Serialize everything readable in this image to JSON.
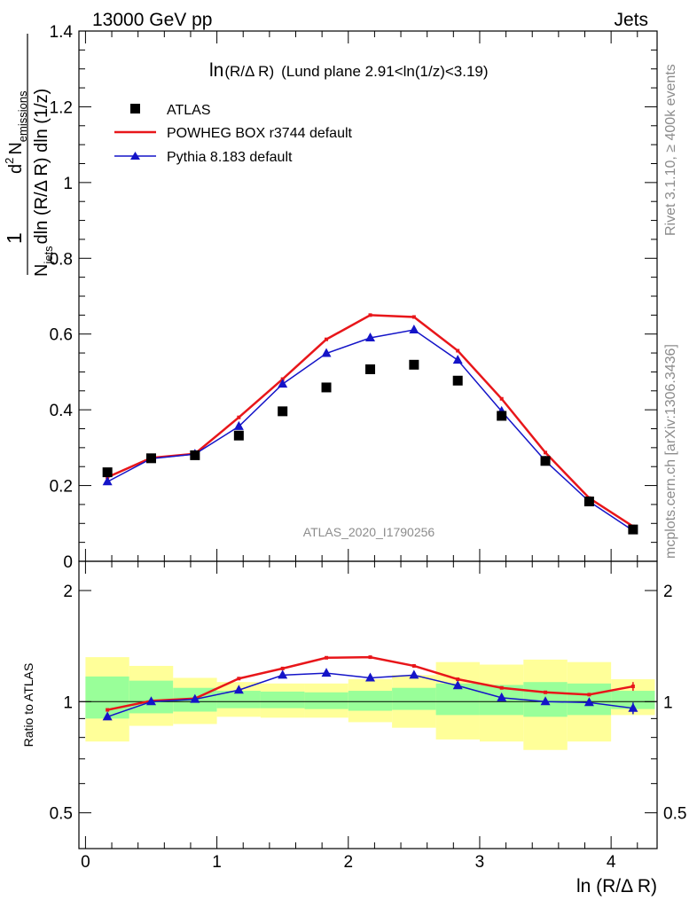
{
  "header": {
    "left": "13000 GeV pp",
    "right": "Jets"
  },
  "side_labels": {
    "rivet": "Rivet 3.1.10, ≥ 400k events",
    "mcplots": "mcplots.cern.ch [arXiv:1306.3436]"
  },
  "watermark": "ATLAS_2020_I1790256",
  "plot_title": {
    "main": "ln",
    "paren": "(R/Δ R)",
    "rest": "(Lund plane 2.91<ln(1/z)<3.19)"
  },
  "y_label_main": {
    "numer_d": "d",
    "numer_sup": "2",
    "numer_n": "N",
    "numer_sub": "emissions",
    "one": "1",
    "den_n": "N",
    "den_sub": "jets",
    "den_rest": "dln (R/Δ R) dln (1/z)"
  },
  "y_label_ratio": "Ratio to ATLAS",
  "x_label": "ln (R/Δ R)",
  "legend": {
    "atlas": "ATLAS",
    "powheg": "POWHEG BOX r3744 default",
    "pythia": "Pythia 8.183 default"
  },
  "colors": {
    "atlas": "#000000",
    "powheg": "#e8161a",
    "pythia": "#1414c8",
    "band_inner": "#99ff99",
    "band_outer": "#ffff99"
  },
  "chart_data": [
    {
      "type": "scatter",
      "panel": "main",
      "x": [
        0.167,
        0.5,
        0.833,
        1.167,
        1.5,
        1.833,
        2.167,
        2.5,
        2.833,
        3.167,
        3.5,
        3.833,
        4.167
      ],
      "series": [
        {
          "name": "ATLAS",
          "values": [
            0.235,
            0.272,
            0.28,
            0.332,
            0.396,
            0.459,
            0.507,
            0.519,
            0.477,
            0.384,
            0.265,
            0.158,
            0.084
          ]
        },
        {
          "name": "POWHEG BOX r3744 default",
          "values": [
            0.222,
            0.273,
            0.284,
            0.38,
            0.481,
            0.586,
            0.65,
            0.645,
            0.556,
            0.429,
            0.287,
            0.167,
            0.092
          ]
        },
        {
          "name": "Pythia 8.183 default",
          "values": [
            0.21,
            0.271,
            0.283,
            0.356,
            0.468,
            0.549,
            0.59,
            0.611,
            0.531,
            0.396,
            0.265,
            0.158,
            0.081
          ]
        }
      ],
      "xlim": [
        -0.05,
        4.35
      ],
      "ylim": [
        0,
        1.4
      ],
      "yticks": [
        "0",
        "0.2",
        "0.4",
        "0.6",
        "0.8",
        "1",
        "1.2",
        "1.4"
      ]
    },
    {
      "type": "line",
      "panel": "ratio",
      "x": [
        0.167,
        0.5,
        0.833,
        1.167,
        1.5,
        1.833,
        2.167,
        2.5,
        2.833,
        3.167,
        3.5,
        3.833,
        4.167
      ],
      "series": [
        {
          "name": "POWHEG BOX r3744 default",
          "values": [
            0.95,
            1.005,
            1.02,
            1.155,
            1.23,
            1.315,
            1.32,
            1.25,
            1.15,
            1.09,
            1.06,
            1.045,
            1.1
          ]
        },
        {
          "name": "Pythia 8.183 default",
          "values": [
            0.91,
            1.0,
            1.015,
            1.075,
            1.18,
            1.195,
            1.16,
            1.18,
            1.105,
            1.025,
            1.0,
            0.995,
            0.96
          ]
        }
      ],
      "bands": {
        "edges": [
          0,
          0.333,
          0.667,
          1.0,
          1.333,
          1.667,
          2.0,
          2.333,
          2.667,
          3.0,
          3.333,
          3.667,
          4.0,
          4.333
        ],
        "inner_low": [
          0.9,
          0.93,
          0.94,
          0.96,
          0.96,
          0.955,
          0.945,
          0.95,
          0.92,
          0.92,
          0.91,
          0.92,
          0.955
        ],
        "inner_high": [
          1.17,
          1.14,
          1.09,
          1.07,
          1.065,
          1.06,
          1.07,
          1.09,
          1.12,
          1.11,
          1.13,
          1.12,
          1.07
        ],
        "outer_low": [
          0.78,
          0.86,
          0.87,
          0.91,
          0.905,
          0.905,
          0.88,
          0.85,
          0.79,
          0.78,
          0.74,
          0.78,
          0.92
        ],
        "outer_high": [
          1.32,
          1.25,
          1.16,
          1.13,
          1.12,
          1.12,
          1.15,
          1.18,
          1.28,
          1.26,
          1.3,
          1.28,
          1.15
        ]
      },
      "xlim": [
        -0.05,
        4.35
      ],
      "ylim": [
        0.4,
        2.4
      ],
      "log_y": true,
      "yticks": [
        "0.5",
        "1",
        "2"
      ],
      "xticks": [
        "0",
        "1",
        "2",
        "3",
        "4"
      ]
    }
  ]
}
